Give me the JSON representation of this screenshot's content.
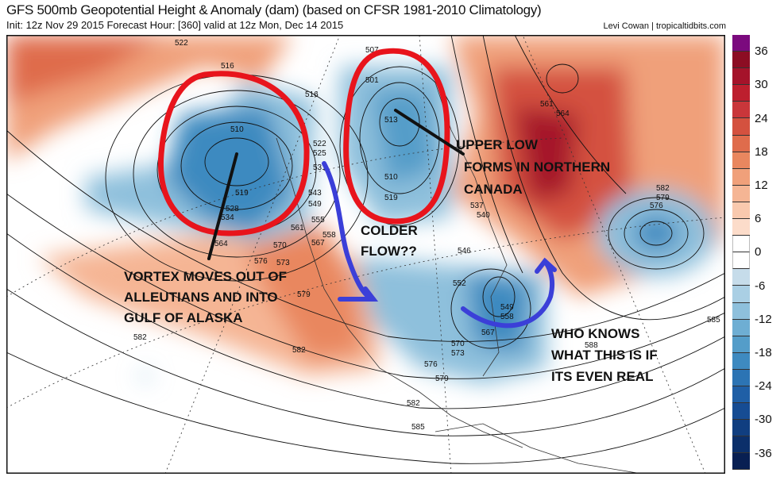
{
  "header": {
    "title": "GFS 500mb Geopotential Height & Anomaly (dam) (based on CFSR 1981-2010 Climatology)",
    "subtitle": "Init: 12z Nov 29 2015   Forecast Hour: [360]   valid at 12z Mon, Dec 14 2015",
    "credit": "Levi Cowan | tropicaltidbits.com"
  },
  "colorbar": {
    "labels": [
      "36",
      "30",
      "24",
      "18",
      "12",
      "6",
      "0",
      "-6",
      "-12",
      "-18",
      "-24",
      "-30",
      "-36"
    ],
    "colors": [
      "#7b0a7e",
      "#8c0d23",
      "#a5132a",
      "#bd1f2e",
      "#c9363a",
      "#d4513f",
      "#df6c4c",
      "#e9875f",
      "#f0a07a",
      "#f5b594",
      "#f9c9ae",
      "#fcdcca",
      "#ffffff",
      "#ffffff",
      "#c6dcea",
      "#aacfe4",
      "#8ec0dc",
      "#6eaed3",
      "#549dc9",
      "#3e8ac0",
      "#2c74b4",
      "#1f5fa6",
      "#164c93",
      "#103e80",
      "#0b2f6a",
      "#081f52"
    ]
  },
  "annotations": {
    "vortex": [
      "VORTEX MOVES OUT OF",
      "ALLEUTIANS AND INTO",
      "GULF OF ALASKA"
    ],
    "upper_low": [
      "UPPER LOW",
      "FORMS IN NORTHERN",
      "CANADA"
    ],
    "colder": [
      "COLDER",
      "FLOW??"
    ],
    "who_knows": [
      "WHO KNOWS",
      "WHAT THIS IS IF",
      "ITS EVEN REAL"
    ]
  },
  "contour_labels": [
    "522",
    "516",
    "510",
    "519",
    "528",
    "534",
    "564",
    "576",
    "570",
    "573",
    "579",
    "582",
    "522",
    "525",
    "531",
    "543",
    "549",
    "555",
    "561",
    "567",
    "558",
    "507",
    "501",
    "513",
    "510",
    "519",
    "537",
    "540",
    "546",
    "552",
    "549",
    "558",
    "567",
    "570",
    "573",
    "576",
    "579",
    "582",
    "585",
    "588",
    "561",
    "564",
    "582",
    "579",
    "576",
    "585",
    "516",
    "582"
  ]
}
